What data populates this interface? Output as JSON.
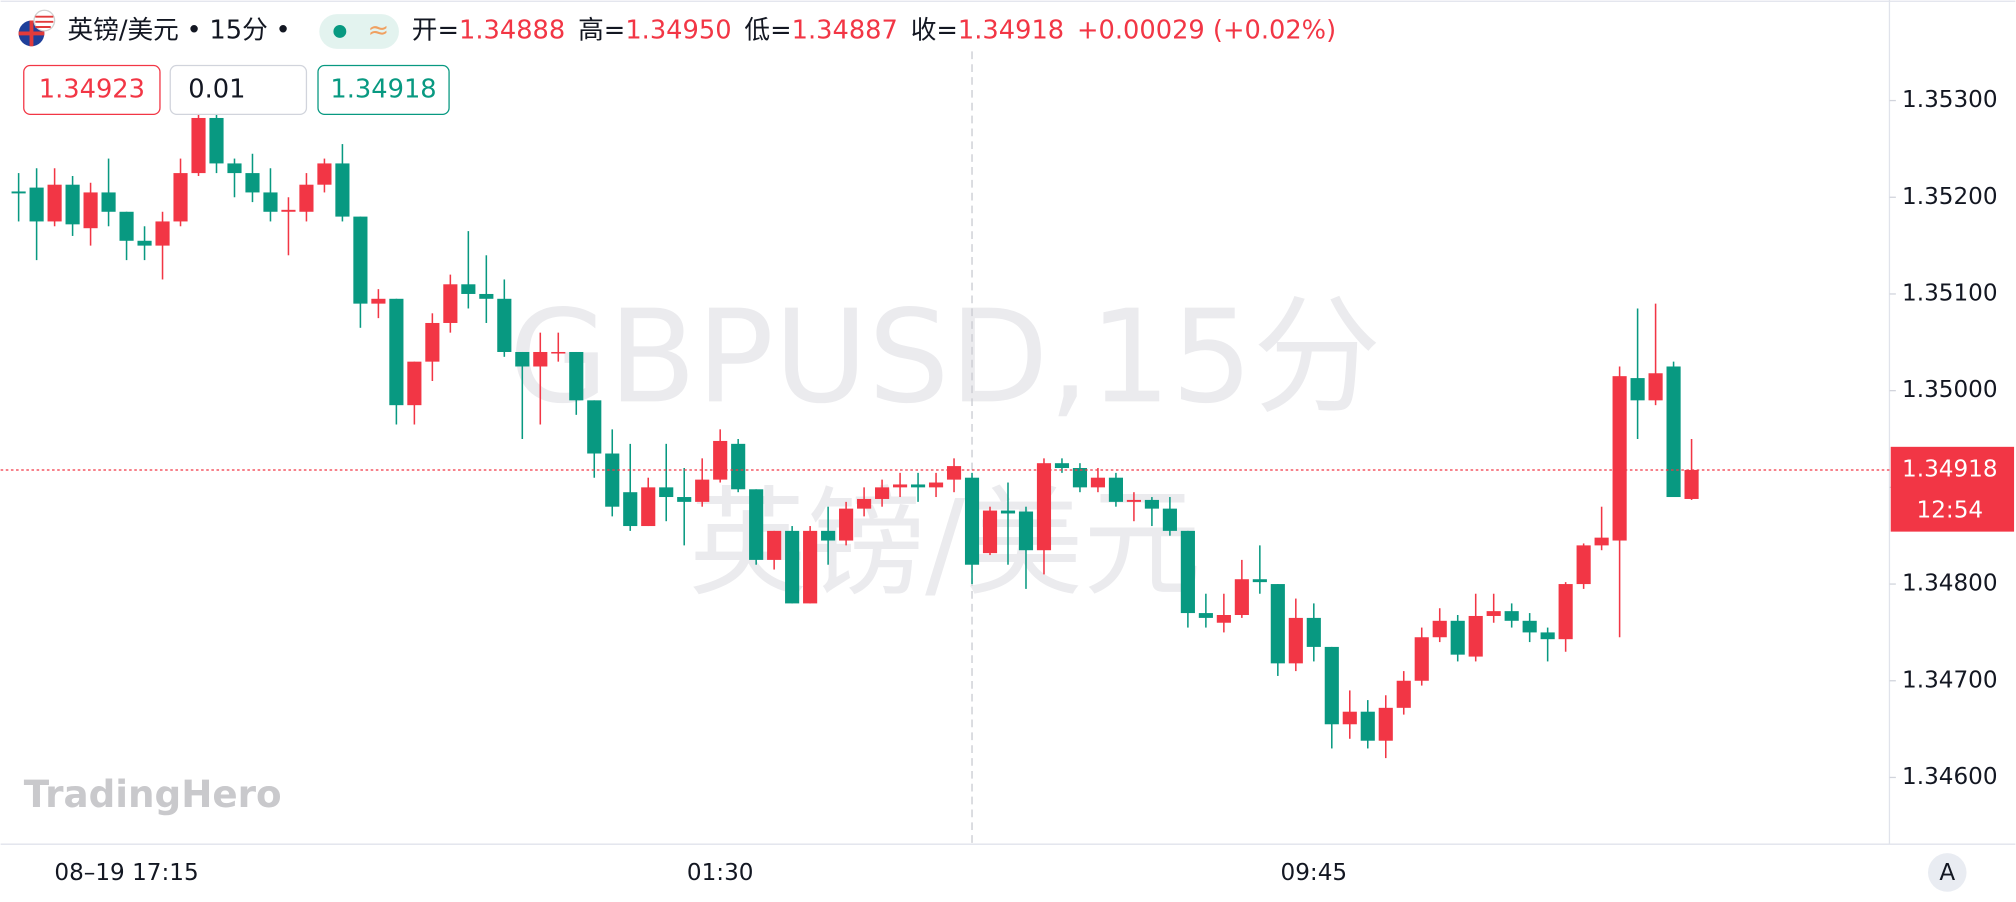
{
  "chart_data": {
    "type": "candlestick",
    "symbol": "英镑/美元",
    "interval": "15分",
    "separator": "•",
    "header": {
      "open_label": "开=",
      "open": "1.34888",
      "high_label": "高=",
      "high": "1.34950",
      "low_label": "低=",
      "low": "1.34887",
      "close_label": "收=",
      "close": "1.34918",
      "change": "+0.00029 (+0.02%)"
    },
    "toggle": "≈",
    "order_buttons": {
      "sell": "1.34923",
      "quantity": "0.01",
      "buy": "1.34918"
    },
    "watermark": [
      "GBPUSD,15分",
      "英镑/美元"
    ],
    "logo": "TradingHero",
    "up_color": "#f23645",
    "down_color": "#089981",
    "categories": [
      null,
      null,
      null,
      null,
      null,
      null,
      "08–19 17:15",
      null,
      null,
      null,
      null,
      null,
      null,
      null,
      null,
      null,
      null,
      null,
      null,
      null,
      null,
      null,
      null,
      null,
      null,
      null,
      null,
      null,
      null,
      null,
      null,
      null,
      null,
      null,
      null,
      null,
      null,
      null,
      null,
      "01:30",
      null,
      null,
      null,
      null,
      null,
      null,
      null,
      null,
      null,
      null,
      null,
      null,
      null,
      null,
      null,
      null,
      null,
      null,
      null,
      null,
      null,
      null,
      null,
      null,
      null,
      null,
      null,
      null,
      null,
      null,
      null,
      null,
      "09:45",
      null,
      null,
      null,
      null,
      null,
      null,
      null,
      null,
      null,
      null,
      null,
      null,
      null,
      null,
      null,
      null,
      null,
      null,
      null,
      null,
      null
    ],
    "open": [
      1.35206,
      1.3521,
      1.35175,
      1.35213,
      1.35168,
      1.35205,
      1.35185,
      1.35155,
      1.3515,
      1.35175,
      1.35225,
      1.35282,
      1.35235,
      1.35225,
      1.35205,
      1.35185,
      1.35185,
      1.35213,
      1.35235,
      1.3518,
      1.3509,
      1.35095,
      1.34985,
      1.3503,
      1.3507,
      1.3511,
      1.351,
      1.35095,
      1.3504,
      1.35025,
      1.3504,
      1.3504,
      1.3499,
      1.34935,
      1.34895,
      1.3486,
      1.349,
      1.3489,
      1.34885,
      1.34908,
      1.34945,
      1.34898,
      1.34825,
      1.34855,
      1.3478,
      1.34855,
      1.34845,
      1.34878,
      1.34888,
      1.349,
      1.34903,
      1.349,
      1.34908,
      1.3491,
      1.34832,
      1.34876,
      1.34875,
      1.34835,
      1.34925,
      1.3492,
      1.349,
      1.3491,
      1.34885,
      1.34887,
      1.34878,
      1.34855,
      1.3477,
      1.3476,
      1.34768,
      1.34805,
      1.348,
      1.34718,
      1.34765,
      1.34735,
      1.34655,
      1.34668,
      1.34638,
      1.34672,
      1.347,
      1.34745,
      1.34762,
      1.34725,
      1.34767,
      1.34772,
      1.34762,
      1.3475,
      1.34743,
      1.348,
      1.3484,
      1.34845,
      1.35013,
      1.3499,
      1.35025,
      1.34888
    ],
    "high": [
      1.35225,
      1.3523,
      1.3523,
      1.35222,
      1.35215,
      1.3524,
      1.35185,
      1.3517,
      1.35185,
      1.3524,
      1.353,
      1.353,
      1.3524,
      1.35245,
      1.3523,
      1.352,
      1.35225,
      1.3524,
      1.35255,
      1.3518,
      1.35105,
      1.35095,
      1.3503,
      1.3508,
      1.3512,
      1.35165,
      1.3514,
      1.35115,
      1.3504,
      1.3506,
      1.3506,
      1.3504,
      1.3499,
      1.3496,
      1.34945,
      1.3491,
      1.34945,
      1.3492,
      1.3493,
      1.3496,
      1.3495,
      1.34898,
      1.34855,
      1.3486,
      1.3486,
      1.3488,
      1.34885,
      1.349,
      1.34908,
      1.34915,
      1.34915,
      1.34915,
      1.3493,
      1.34915,
      1.3488,
      1.34905,
      1.3488,
      1.3493,
      1.3493,
      1.34925,
      1.3492,
      1.34915,
      1.34895,
      1.3489,
      1.3489,
      1.34855,
      1.3479,
      1.3479,
      1.34825,
      1.3484,
      1.348,
      1.34785,
      1.3478,
      1.34735,
      1.3469,
      1.3468,
      1.34685,
      1.3471,
      1.34755,
      1.34775,
      1.34768,
      1.3479,
      1.3479,
      1.3478,
      1.3477,
      1.34755,
      1.34802,
      1.34842,
      1.3488,
      1.35025,
      1.35085,
      1.3509,
      1.3503,
      1.3495
    ],
    "low": [
      1.35175,
      1.35135,
      1.3517,
      1.3516,
      1.3515,
      1.3517,
      1.35135,
      1.35135,
      1.35115,
      1.3517,
      1.35222,
      1.35225,
      1.352,
      1.35195,
      1.35175,
      1.3514,
      1.35175,
      1.35205,
      1.35175,
      1.35065,
      1.35075,
      1.34965,
      1.34965,
      1.3501,
      1.3506,
      1.35085,
      1.3507,
      1.35035,
      1.3495,
      1.34965,
      1.3503,
      1.34975,
      1.3491,
      1.3487,
      1.34855,
      1.3486,
      1.34865,
      1.3484,
      1.3488,
      1.34905,
      1.34895,
      1.3482,
      1.34815,
      1.3478,
      1.3478,
      1.3482,
      1.3484,
      1.3487,
      1.3488,
      1.3489,
      1.34885,
      1.3489,
      1.34895,
      1.348,
      1.3483,
      1.3482,
      1.34795,
      1.3481,
      1.34915,
      1.34895,
      1.34895,
      1.3488,
      1.34865,
      1.3486,
      1.3485,
      1.34755,
      1.34755,
      1.3475,
      1.34765,
      1.3479,
      1.34705,
      1.3471,
      1.3472,
      1.3463,
      1.3464,
      1.3463,
      1.3462,
      1.34665,
      1.34695,
      1.3474,
      1.3472,
      1.3472,
      1.3476,
      1.34755,
      1.3474,
      1.3472,
      1.3473,
      1.34795,
      1.34835,
      1.34745,
      1.3495,
      1.34985,
      1.3489,
      1.34887
    ],
    "close": [
      1.35204,
      1.35175,
      1.35213,
      1.35172,
      1.35205,
      1.35185,
      1.35155,
      1.3515,
      1.35175,
      1.35225,
      1.35282,
      1.35235,
      1.35225,
      1.35205,
      1.35185,
      1.35187,
      1.35213,
      1.35235,
      1.3518,
      1.3509,
      1.35095,
      1.34985,
      1.3503,
      1.3507,
      1.3511,
      1.351,
      1.35095,
      1.3504,
      1.35025,
      1.3504,
      1.3504,
      1.3499,
      1.34935,
      1.3488,
      1.3486,
      1.349,
      1.3489,
      1.34885,
      1.34908,
      1.34948,
      1.34898,
      1.34825,
      1.34855,
      1.3478,
      1.34855,
      1.34845,
      1.34878,
      1.34888,
      1.349,
      1.34903,
      1.349,
      1.34905,
      1.34922,
      1.3482,
      1.34876,
      1.34873,
      1.34835,
      1.34925,
      1.3492,
      1.349,
      1.3491,
      1.34885,
      1.34887,
      1.34878,
      1.34855,
      1.3477,
      1.34765,
      1.34768,
      1.34805,
      1.34802,
      1.34718,
      1.34765,
      1.34735,
      1.34655,
      1.34668,
      1.34638,
      1.34672,
      1.347,
      1.34745,
      1.34762,
      1.34727,
      1.34767,
      1.34772,
      1.34762,
      1.3475,
      1.34743,
      1.348,
      1.3484,
      1.34848,
      1.35015,
      1.3499,
      1.35018,
      1.3489,
      1.34918
    ],
    "ylim": [
      1.34531,
      1.35404
    ],
    "yticks": [
      {
        "value": 1.346,
        "label": "1.34600"
      },
      {
        "value": 1.347,
        "label": "1.34700"
      },
      {
        "value": 1.348,
        "label": "1.34800"
      },
      {
        "value": 1.349,
        "label": "1.34900"
      },
      {
        "value": 1.35,
        "label": "1.35000"
      },
      {
        "value": 1.351,
        "label": "1.35100"
      },
      {
        "value": 1.352,
        "label": "1.35200"
      },
      {
        "value": 1.353,
        "label": "1.35300"
      }
    ],
    "current_price": {
      "value": 1.34918,
      "label": "1.34918"
    },
    "countdown": "12:54",
    "axis_mode": "A"
  }
}
